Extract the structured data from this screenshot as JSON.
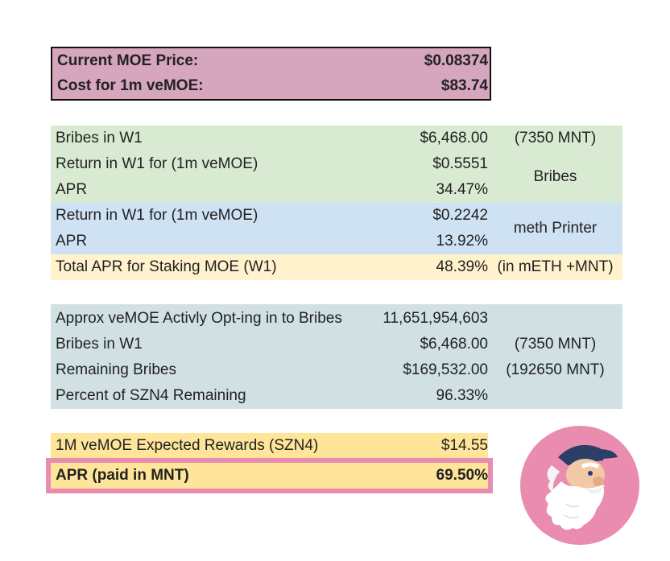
{
  "price": {
    "current_label": "Current MOE Price:",
    "current_value": "$0.08374",
    "cost_label": "Cost for 1m veMOE:",
    "cost_value": "$83.74"
  },
  "bribes": {
    "bribes_w1_label": "Bribes in W1",
    "bribes_w1_value": "$6,468.00",
    "bribes_w1_note": "(7350 MNT)",
    "return_label": "Return in W1 for (1m veMOE)",
    "return_value": "$0.5551",
    "apr_label": "APR",
    "apr_value": "34.47%",
    "section_note": "Bribes"
  },
  "meth": {
    "return_label": "Return in W1 for (1m veMOE)",
    "return_value": "$0.2242",
    "apr_label": "APR",
    "apr_value": "13.92%",
    "section_note": "meth Printer"
  },
  "total": {
    "label": "Total APR for Staking MOE (W1)",
    "value": "48.39%",
    "note": "(in mETH +MNT)"
  },
  "optin": {
    "rows": [
      {
        "label": "Approx veMOE Activly Opt-ing in to Bribes",
        "value": "11,651,954,603",
        "note": ""
      },
      {
        "label": "Bribes in W1",
        "value": "$6,468.00",
        "note": "(7350 MNT)"
      },
      {
        "label": "Remaining Bribes",
        "value": "$169,532.00",
        "note": "(192650 MNT)"
      },
      {
        "label": "Percent of SZN4 Remaining",
        "value": "96.33%",
        "note": ""
      }
    ]
  },
  "rewards": {
    "expected_label": "1M veMOE Expected Rewards (SZN4)",
    "expected_value": "$14.55",
    "apr_label": "APR (paid in MNT)",
    "apr_value": "69.50%"
  },
  "colors": {
    "price_bg": "#d5a6bd",
    "bribes_bg": "#d9ead3",
    "meth_bg": "#cfe2f3",
    "total_bg": "#fff2cc",
    "optin_bg": "#d0e0e3",
    "rewards_bg": "#ffe599",
    "highlight_border": "#ea8bb0",
    "mascot_circle": "#ea8bb0"
  },
  "mascot": {
    "icon": "wizard-mascot-icon"
  }
}
